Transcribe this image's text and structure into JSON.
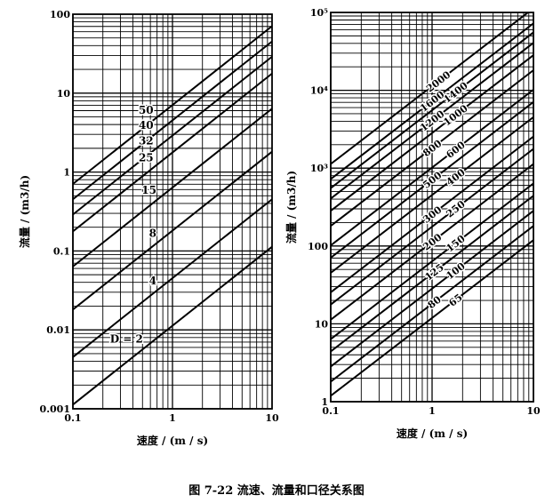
{
  "caption": "图 7-22   流速、流量和口径关系图",
  "chart_data": [
    {
      "type": "line",
      "xscale": "log",
      "yscale": "log",
      "xlim": [
        0.1,
        10
      ],
      "ylim": [
        0.001,
        100
      ],
      "xlabel": "速度 / (m / s)",
      "ylabel": "流量 / (m3/h)",
      "xticks": [
        "0.1",
        "1",
        "10"
      ],
      "yticks": [
        "0.001",
        "0.01",
        "0.1",
        "1",
        "10",
        "100"
      ],
      "grid": true,
      "series": [
        {
          "name": "D = 2",
          "x": [
            0.1,
            10
          ],
          "y": [
            0.00113,
            0.113
          ]
        },
        {
          "name": "4",
          "x": [
            0.1,
            10
          ],
          "y": [
            0.00452,
            0.452
          ]
        },
        {
          "name": "8",
          "x": [
            0.1,
            10
          ],
          "y": [
            0.0181,
            1.81
          ]
        },
        {
          "name": "15",
          "x": [
            0.1,
            10
          ],
          "y": [
            0.0636,
            6.36
          ]
        },
        {
          "name": "25",
          "x": [
            0.1,
            10
          ],
          "y": [
            0.177,
            17.7
          ]
        },
        {
          "name": "32",
          "x": [
            0.1,
            10
          ],
          "y": [
            0.29,
            29.0
          ]
        },
        {
          "name": "40",
          "x": [
            0.1,
            10
          ],
          "y": [
            0.452,
            45.2
          ]
        },
        {
          "name": "50",
          "x": [
            0.1,
            10
          ],
          "y": [
            0.707,
            70.7
          ]
        }
      ]
    },
    {
      "type": "line",
      "xscale": "log",
      "yscale": "log",
      "xlim": [
        0.1,
        10
      ],
      "ylim": [
        1,
        100000
      ],
      "xlabel": "速度 / (m / s)",
      "ylabel": "流量 / (m3/h)",
      "xticks": [
        "0.1",
        "1",
        "10"
      ],
      "yticks": [
        "1",
        "10",
        "100",
        "10³",
        "10⁴",
        "10⁵"
      ],
      "grid": true,
      "series": [
        {
          "name": "65",
          "x": [
            0.1,
            10
          ],
          "y": [
            1.19,
            119
          ]
        },
        {
          "name": "80",
          "x": [
            0.1,
            10
          ],
          "y": [
            1.81,
            181
          ]
        },
        {
          "name": "100",
          "x": [
            0.1,
            10
          ],
          "y": [
            2.83,
            283
          ]
        },
        {
          "name": "125",
          "x": [
            0.1,
            10
          ],
          "y": [
            4.42,
            442
          ]
        },
        {
          "name": "150",
          "x": [
            0.1,
            10
          ],
          "y": [
            6.36,
            636
          ]
        },
        {
          "name": "200",
          "x": [
            0.1,
            10
          ],
          "y": [
            11.3,
            1131
          ]
        },
        {
          "name": "250",
          "x": [
            0.1,
            10
          ],
          "y": [
            17.7,
            1767
          ]
        },
        {
          "name": "300",
          "x": [
            0.1,
            10
          ],
          "y": [
            25.4,
            2545
          ]
        },
        {
          "name": "400",
          "x": [
            0.1,
            10
          ],
          "y": [
            45.2,
            4524
          ]
        },
        {
          "name": "500",
          "x": [
            0.1,
            10
          ],
          "y": [
            70.7,
            7069
          ]
        },
        {
          "name": "600",
          "x": [
            0.1,
            10
          ],
          "y": [
            101.8,
            10179
          ]
        },
        {
          "name": "800",
          "x": [
            0.1,
            10
          ],
          "y": [
            181,
            18096
          ]
        },
        {
          "name": "1000",
          "x": [
            0.1,
            10
          ],
          "y": [
            283,
            28274
          ]
        },
        {
          "name": "1200",
          "x": [
            0.1,
            10
          ],
          "y": [
            407,
            40715
          ]
        },
        {
          "name": "1400",
          "x": [
            0.1,
            10
          ],
          "y": [
            554,
            55418
          ]
        },
        {
          "name": "1600",
          "x": [
            0.1,
            10
          ],
          "y": [
            724,
            72382
          ]
        },
        {
          "name": "2000",
          "x": [
            0.1,
            10
          ],
          "y": [
            1131,
            113097
          ]
        }
      ]
    }
  ]
}
